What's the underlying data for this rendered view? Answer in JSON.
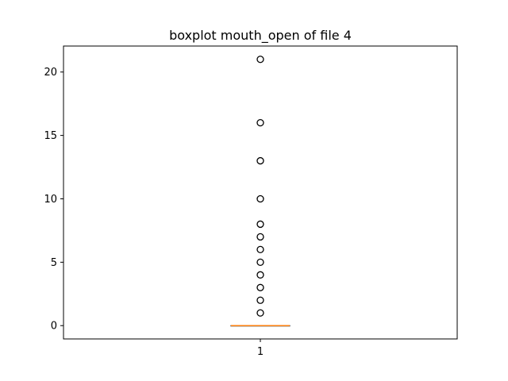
{
  "chart_data": {
    "type": "boxplot",
    "title": "boxplot mouth_open of file 4",
    "xlabel": "",
    "ylabel": "",
    "categories": [
      "1"
    ],
    "ylim": [
      -1.05,
      22.05
    ],
    "yticks": [
      0,
      5,
      10,
      15,
      20
    ],
    "grid": false,
    "box": {
      "q1": 0,
      "median": 0,
      "q3": 0,
      "whisker_low": 0,
      "whisker_high": 0
    },
    "outliers": [
      1,
      2,
      3,
      4,
      5,
      6,
      7,
      8,
      10,
      13,
      16,
      21
    ],
    "colors": {
      "box": "#000000",
      "median": "#ff7f0e",
      "outlier_edge": "#000000"
    }
  }
}
